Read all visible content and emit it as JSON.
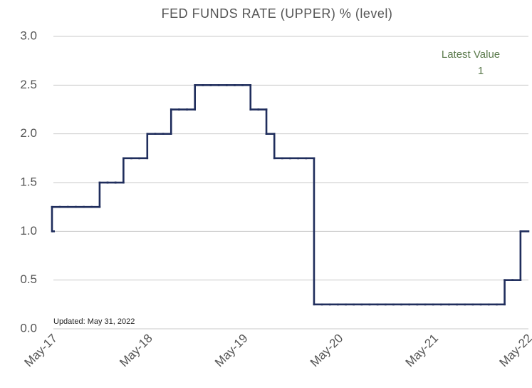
{
  "chart_data": {
    "type": "line",
    "title": "FED FUNDS RATE (UPPER) % (level)",
    "categories": [
      "May-17",
      null,
      null,
      null,
      null,
      null,
      null,
      null,
      null,
      null,
      null,
      null,
      "May-18",
      null,
      null,
      null,
      null,
      null,
      null,
      null,
      null,
      null,
      null,
      null,
      "May-19",
      null,
      null,
      null,
      null,
      null,
      null,
      null,
      null,
      null,
      null,
      null,
      "May-20",
      null,
      null,
      null,
      null,
      null,
      null,
      null,
      null,
      null,
      null,
      null,
      "May-21",
      null,
      null,
      null,
      null,
      null,
      null,
      null,
      null,
      null,
      null,
      null,
      "May-22"
    ],
    "series": [
      {
        "name": "Fed Funds Rate (Upper)",
        "color": "#1f2d5c",
        "values": [
          1,
          1.25,
          1.25,
          1.25,
          1.25,
          1.25,
          1.25,
          1.5,
          1.5,
          1.5,
          1.75,
          1.75,
          1.75,
          2,
          2,
          2,
          2.25,
          2.25,
          2.25,
          2.5,
          2.5,
          2.5,
          2.5,
          2.5,
          2.5,
          2.5,
          2.25,
          2.25,
          2,
          1.75,
          1.75,
          1.75,
          1.75,
          1.75,
          0.25,
          0.25,
          0.25,
          0.25,
          0.25,
          0.25,
          0.25,
          0.25,
          0.25,
          0.25,
          0.25,
          0.25,
          0.25,
          0.25,
          0.25,
          0.25,
          0.25,
          0.25,
          0.25,
          0.25,
          0.25,
          0.25,
          0.25,
          0.25,
          0.5,
          0.5,
          1
        ]
      }
    ],
    "ylim": [
      0,
      3
    ],
    "yticks": [
      {
        "value": 0,
        "label": "0.0"
      },
      0.5,
      {
        "value": 1,
        "label": "1.0"
      },
      1.5,
      {
        "value": 2,
        "label": "2.0"
      },
      2.5,
      {
        "value": 3,
        "label": "3.0"
      }
    ],
    "grid": true,
    "step": true,
    "latest_value_label": "Latest Value",
    "latest_value": 1,
    "updated_note": "Updated: May 31, 2022"
  }
}
